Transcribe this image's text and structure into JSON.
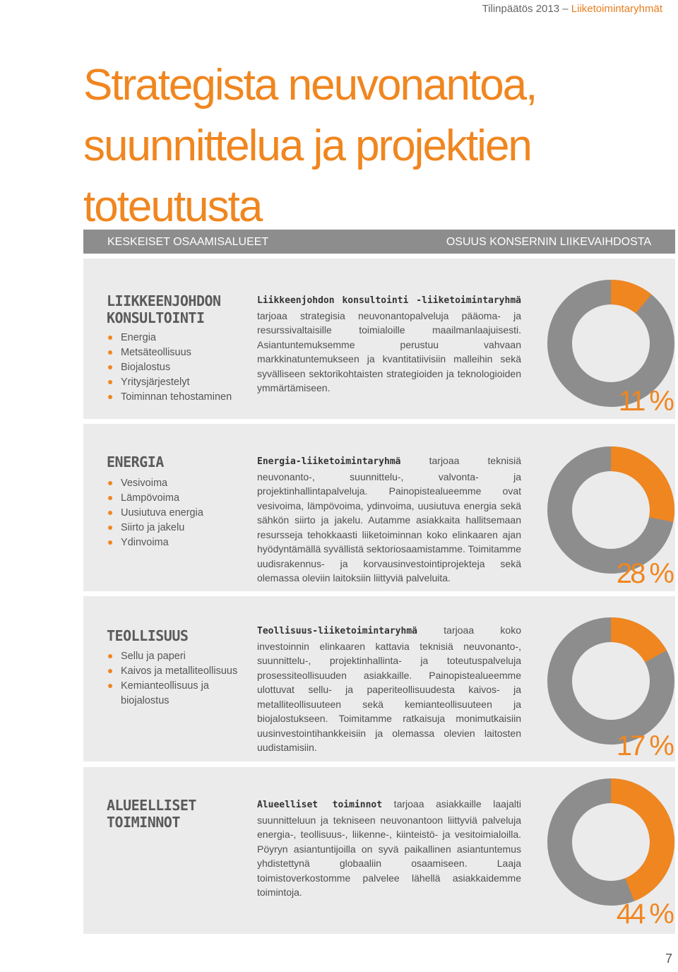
{
  "header": {
    "prefix": "Tilinpäätös 2013",
    "dash": " – ",
    "section": "Liiketoimintaryhmät"
  },
  "title": {
    "line1": "Strategista neuvonantoa,",
    "line2": "suunnittelua ja projektien",
    "line3": "toteutusta"
  },
  "columns": {
    "left": "KESKEISET OSAAMISALUEET",
    "right": "OSUUS KONSERNIN LIIKEVAIHDOSTA"
  },
  "colors": {
    "accent": "#f0861f",
    "donut_grey": "#8d8d8d",
    "panel_bg": "#ebebeb"
  },
  "sections": [
    {
      "heading": [
        "LIIKKEENJOHDON",
        "KONSULTOINTI"
      ],
      "items": [
        "Energia",
        "Metsäteollisuus",
        "Biojalostus",
        "Yritysjärjestelyt",
        "Toiminnan tehostaminen"
      ],
      "lead": "Liikkeenjohdon konsultointi -liiketoimintaryhmä",
      "text": " tarjoaa strategisia neuvonantopalveluja pääoma- ja resurssivaltaisille toimialoille maailmanlaajuisesti. Asiantuntemuksemme perustuu vahvaan markkinatuntemukseen ja kvantitatiivisiin malleihin sekä syvälliseen sektorikohtaisten strategioiden ja teknologioiden ymmärtämiseen.",
      "share": 0.11,
      "share_label": "11 %"
    },
    {
      "heading": [
        "ENERGIA"
      ],
      "items": [
        "Vesivoima",
        "Lämpövoima",
        "Uusiutuva energia",
        "Siirto ja jakelu",
        "Ydinvoima"
      ],
      "lead": "Energia-liiketoimintaryhmä",
      "text": " tarjoaa teknisiä neuvonanto-, suunnittelu-, valvonta- ja projektinhallintapalveluja. Painopistealueemme ovat vesivoima, lämpövoima, ydinvoima, uusiutuva energia sekä sähkön siirto ja jakelu. Autamme asiakkaita hallitsemaan resursseja tehokkaasti liiketoiminnan koko elinkaaren ajan hyödyntämällä syvällistä sektoriosaamistamme. Toimitamme uudisrakennus- ja korvausinvestointiprojekteja sekä olemassa oleviin laitoksiin liittyviä palveluita.",
      "share": 0.28,
      "share_label": "28 %"
    },
    {
      "heading": [
        "TEOLLISUUS"
      ],
      "items": [
        "Sellu ja paperi",
        "Kaivos ja metalliteollisuus",
        "Kemianteollisuus ja biojalostus"
      ],
      "lead": "Teollisuus-liiketoimintaryhmä",
      "text": " tarjoaa koko investoinnin elinkaaren kattavia teknisiä neuvonanto-, suunnittelu-, projektinhallinta- ja toteutuspalveluja prosessiteollisuuden asiakkaille. Painopistealueemme ulottuvat sellu- ja paperiteollisuudesta kaivos- ja metalliteollisuuteen sekä kemianteollisuuteen ja biojalostukseen. Toimitamme ratkaisuja monimutkaisiin uusinvestointihankkeisiin ja olemassa olevien laitosten uudistamisiin.",
      "share": 0.17,
      "share_label": "17 %"
    },
    {
      "heading": [
        "ALUEELLISET",
        "TOIMINNOT"
      ],
      "items": [],
      "lead": "Alueelliset toiminnot",
      "text": " tarjoaa asiakkaille laajalti suunnitteluun ja tekniseen neuvonantoon liittyviä palveluja energia-, teollisuus-, liikenne-, kiinteistö- ja vesitoimialoilla. Pöyryn asiantuntijoilla on syvä paikallinen asiantuntemus yhdistettynä globaaliin osaamiseen. Laaja toimistoverkostomme palvelee lähellä asiakkaidemme toimintoja.",
      "share": 0.44,
      "share_label": "44 %"
    }
  ],
  "page_number": "7"
}
